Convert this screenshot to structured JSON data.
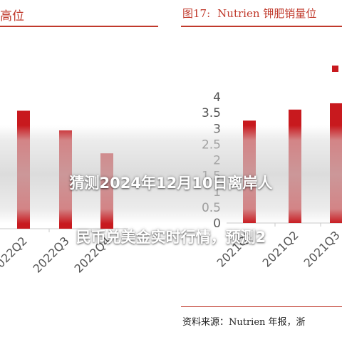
{
  "headline": {
    "line1": "猜测2024年12月10日离岸人",
    "line2": "民币兑美金实时行情，预测2"
  },
  "left_figure": {
    "title_fragment": "高位"
  },
  "right_figure": {
    "figure_label": "图17:",
    "title": "Nutrien 钾肥销量位",
    "source_text": "资料来源：Nutrien 年报，浙"
  },
  "colors": {
    "bar": "#c8191e",
    "accent_red": "#c0392b",
    "axis": "#c8c8c8",
    "tick_text": "#555555"
  },
  "chart_data": [
    {
      "type": "bar",
      "categories": [
        "2022Q2",
        "2022Q3",
        "2022Q4"
      ],
      "values": [
        3.6,
        3.0,
        2.3
      ],
      "title": "",
      "xlabel": "",
      "ylabel": "",
      "ylim": [
        0,
        4.5
      ],
      "grid": false,
      "note": ""
    },
    {
      "type": "bar",
      "categories": [
        "2021Q1",
        "2021Q2",
        "2021Q3"
      ],
      "values": [
        3.25,
        3.6,
        3.8
      ],
      "title": "",
      "xlabel": "",
      "ylabel": "",
      "yticks": [
        "0",
        "0.5",
        "1",
        "1.5",
        "2",
        "2.5",
        "3",
        "3.5",
        "4"
      ],
      "ylim": [
        0,
        4.5
      ],
      "grid": false,
      "legend": "top-right"
    }
  ]
}
